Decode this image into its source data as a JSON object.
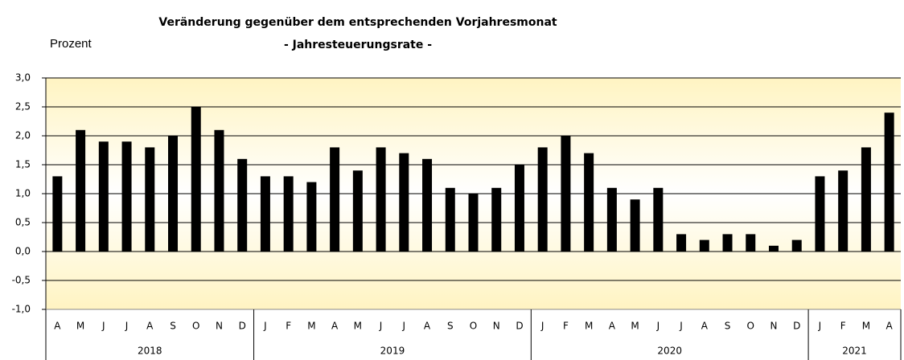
{
  "chart_data": {
    "type": "bar",
    "title": "Veränderung gegenüber dem entsprechenden Vorjahresmonat",
    "subtitle": "- Jahresteuerungsrate -",
    "y_label": "Prozent",
    "color": "#000000",
    "grid": true,
    "ylim": [
      -1,
      3
    ],
    "yticks": [
      {
        "value": -1,
        "label": "-1,0"
      },
      {
        "value": -0.5,
        "label": "-0,5"
      },
      {
        "value": 0,
        "label": "0,0"
      },
      {
        "value": 0.5,
        "label": "0,5"
      },
      {
        "value": 1,
        "label": "1,0"
      },
      {
        "value": 1.5,
        "label": "1,5"
      },
      {
        "value": 2,
        "label": "2,0"
      },
      {
        "value": 2.5,
        "label": "2,5"
      },
      {
        "value": 3,
        "label": "3,0"
      }
    ],
    "groups": [
      {
        "name": "2018",
        "categories": [
          "A",
          "M",
          "J",
          "J",
          "A",
          "S",
          "O",
          "N",
          "D"
        ],
        "values": [
          1.3,
          2.1,
          1.9,
          1.9,
          1.8,
          2.0,
          2.5,
          2.1,
          1.6
        ]
      },
      {
        "name": "2019",
        "categories": [
          "J",
          "F",
          "M",
          "A",
          "M",
          "J",
          "J",
          "A",
          "S",
          "O",
          "N",
          "D"
        ],
        "values": [
          1.3,
          1.3,
          1.2,
          1.8,
          1.4,
          1.8,
          1.7,
          1.6,
          1.1,
          1.0,
          1.1,
          1.5
        ]
      },
      {
        "name": "2020",
        "categories": [
          "J",
          "F",
          "M",
          "A",
          "M",
          "J",
          "J",
          "A",
          "S",
          "O",
          "N",
          "D"
        ],
        "values": [
          1.8,
          2.0,
          1.7,
          1.1,
          0.9,
          1.1,
          0.3,
          0.2,
          0.3,
          0.3,
          0.1,
          0.2
        ]
      },
      {
        "name": "2021",
        "categories": [
          "J",
          "F",
          "M",
          "A"
        ],
        "values": [
          1.3,
          1.4,
          1.8,
          2.4
        ]
      }
    ]
  }
}
